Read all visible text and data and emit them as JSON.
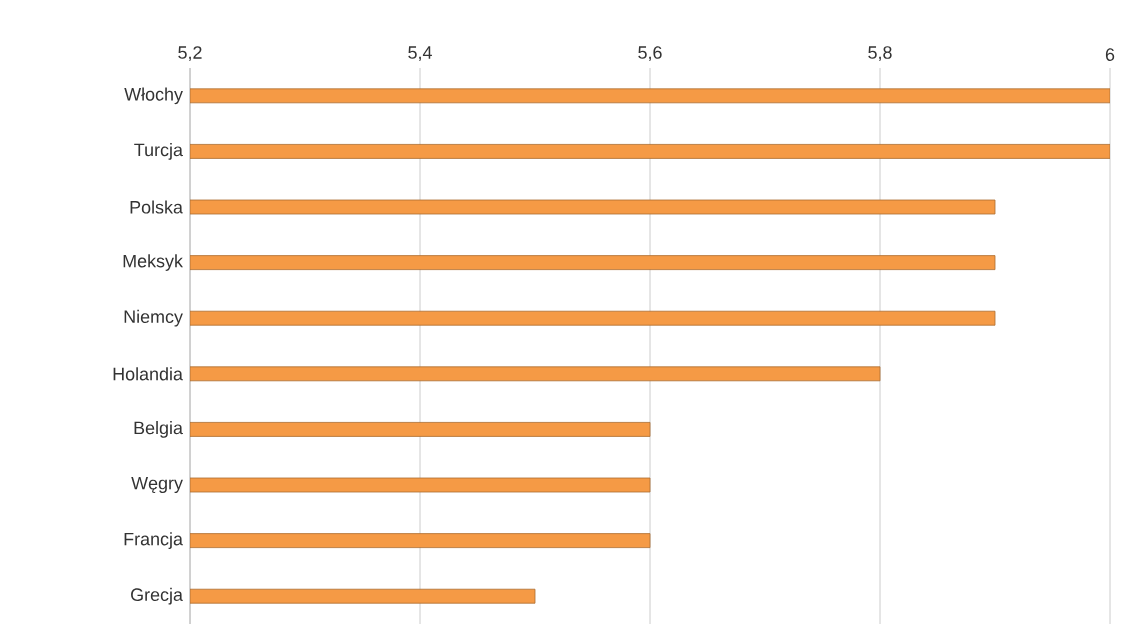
{
  "chart_data": {
    "type": "bar",
    "orientation": "horizontal",
    "categories": [
      "Włochy",
      "Turcja",
      "Polska",
      "Meksyk",
      "Niemcy",
      "Holandia",
      "Belgia",
      "Węgry",
      "Francja",
      "Grecja"
    ],
    "values": [
      6.0,
      6.0,
      5.9,
      5.9,
      5.9,
      5.8,
      5.6,
      5.6,
      5.6,
      5.5
    ],
    "color": "#f59a45",
    "xlim": [
      5.2,
      6.0
    ],
    "xticks": [
      {
        "value": 5.2,
        "label": "5,2"
      },
      {
        "value": 5.4,
        "label": "5,4"
      },
      {
        "value": 5.6,
        "label": "5,6"
      },
      {
        "value": 5.8,
        "label": "5,8"
      },
      {
        "value": 6,
        "label": "6"
      }
    ],
    "grid": "x"
  }
}
